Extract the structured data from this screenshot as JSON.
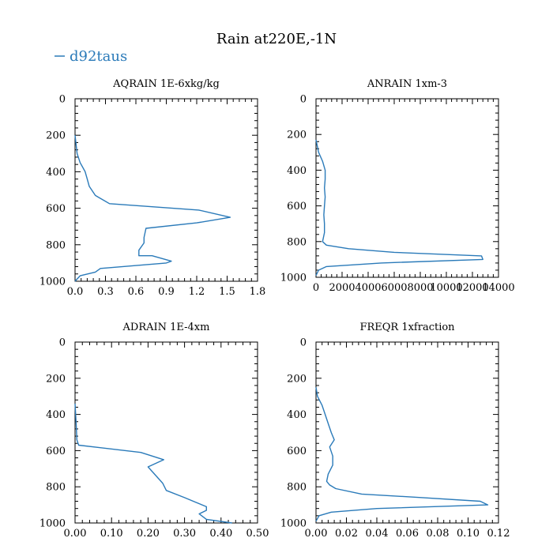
{
  "figure": {
    "title": "Rain at220E,-1N",
    "legend": [
      {
        "label": "d92taus",
        "color": "#2a7ab9"
      }
    ]
  },
  "chart_data": [
    {
      "type": "line",
      "title": "AQRAIN  1E-6xkg/kg",
      "xlim": [
        0,
        1.8
      ],
      "xticks": [
        "0.0",
        "0.3",
        "0.6",
        "0.9",
        "1.2",
        "1.5",
        "1.8"
      ],
      "ylim": [
        0,
        1000
      ],
      "yticks": [
        "0",
        "200",
        "400",
        "600",
        "800",
        "1000"
      ],
      "yinverted": true,
      "series": [
        {
          "name": "d92taus",
          "x": [
            0.0,
            0.02,
            0.05,
            0.1,
            0.12,
            0.14,
            0.2,
            0.34,
            1.22,
            1.53,
            1.2,
            0.7,
            0.68,
            0.68,
            0.63,
            0.63,
            0.76,
            0.95,
            0.9,
            0.25,
            0.2,
            0.05,
            0.0
          ],
          "y": [
            200,
            300,
            350,
            400,
            440,
            480,
            530,
            575,
            610,
            650,
            680,
            710,
            760,
            790,
            830,
            860,
            860,
            890,
            900,
            930,
            950,
            970,
            1000
          ]
        }
      ]
    },
    {
      "type": "line",
      "title": "ANRAIN  1xm-3",
      "xlim": [
        0,
        14000
      ],
      "xticks": [
        "0",
        "2000",
        "4000",
        "6000",
        "8000",
        "10000",
        "12000",
        "14000"
      ],
      "ylim": [
        0,
        1000
      ],
      "yticks": [
        "0",
        "200",
        "400",
        "600",
        "800",
        "1000"
      ],
      "yinverted": true,
      "series": [
        {
          "name": "d92taus",
          "x": [
            0,
            200,
            500,
            700,
            700,
            650,
            700,
            650,
            600,
            650,
            650,
            500,
            800,
            2500,
            6000,
            12700,
            12800,
            5000,
            800,
            200,
            0
          ],
          "y": [
            230,
            300,
            350,
            400,
            450,
            500,
            550,
            600,
            650,
            700,
            750,
            800,
            820,
            840,
            860,
            880,
            900,
            920,
            940,
            960,
            990
          ]
        }
      ]
    },
    {
      "type": "line",
      "title": "ADRAIN  1E-4xm",
      "xlim": [
        0,
        0.5
      ],
      "xticks": [
        "0.00",
        "0.10",
        "0.20",
        "0.30",
        "0.40",
        "0.50"
      ],
      "ylim": [
        0,
        1000
      ],
      "yticks": [
        "0",
        "200",
        "400",
        "600",
        "800",
        "1000"
      ],
      "yinverted": true,
      "series": [
        {
          "name": "d92taus",
          "x": [
            0.0,
            0.003,
            0.005,
            0.01,
            0.18,
            0.243,
            0.2,
            0.24,
            0.25,
            0.3,
            0.36,
            0.36,
            0.34,
            0.36,
            0.43
          ],
          "y": [
            340,
            450,
            540,
            570,
            610,
            650,
            690,
            780,
            820,
            860,
            910,
            930,
            950,
            980,
            1000
          ]
        }
      ]
    },
    {
      "type": "line",
      "title": "FREQR  1xfraction",
      "xlim": [
        0,
        0.12
      ],
      "xticks": [
        "0.00",
        "0.02",
        "0.04",
        "0.06",
        "0.08",
        "0.10",
        "0.12"
      ],
      "ylim": [
        0,
        1000
      ],
      "yticks": [
        "0",
        "200",
        "400",
        "600",
        "800",
        "1000"
      ],
      "yinverted": true,
      "series": [
        {
          "name": "d92taus",
          "x": [
            0.0,
            0.001,
            0.004,
            0.006,
            0.008,
            0.01,
            0.012,
            0.009,
            0.011,
            0.011,
            0.008,
            0.007,
            0.009,
            0.013,
            0.03,
            0.07,
            0.108,
            0.113,
            0.04,
            0.01,
            0.002,
            0.0
          ],
          "y": [
            250,
            300,
            350,
            400,
            450,
            500,
            540,
            580,
            630,
            680,
            730,
            770,
            790,
            810,
            840,
            860,
            880,
            900,
            920,
            940,
            960,
            990
          ]
        }
      ]
    }
  ]
}
